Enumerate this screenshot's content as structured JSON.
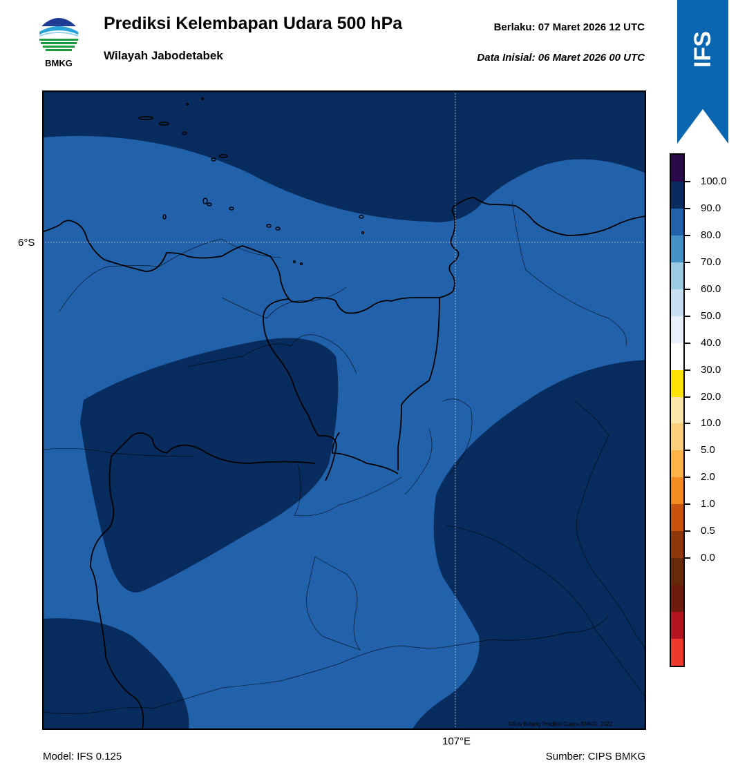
{
  "header": {
    "title": "Prediksi Kelembapan Udara 500 hPa",
    "region": "Wilayah Jabodetabek",
    "valid_time": "Berlaku:  07 Maret 2026 12 UTC",
    "initial_time": "Data Inisial:  06 Maret 2026 00 UTC"
  },
  "logo": {
    "text": "BMKG",
    "colors": [
      "#1f3a93",
      "#2aa3d9",
      "#1a9a3a"
    ]
  },
  "ribbon": {
    "label": "IFS",
    "color": "#0a66b0"
  },
  "map": {
    "lat_label": "6°S",
    "lon_label": "107°E",
    "credit": "©Sub Bidang Prediksi Cuaca BMKG, 2022",
    "fill_colors": {
      "humidity_80_90": "#2262ab",
      "humidity_90_100": "#082c5e"
    }
  },
  "colorbar": {
    "ticks": [
      "0.0",
      "0.5",
      "1.0",
      "2.0",
      "5.0",
      "10.0",
      "20.0",
      "30.0",
      "40.0",
      "50.0",
      "60.0",
      "70.0",
      "80.0",
      "90.0",
      "100.0"
    ],
    "colors": [
      "#ee3a2c",
      "#b3151e",
      "#6d1a0f",
      "#662a0b",
      "#8e360c",
      "#c9520e",
      "#f48b1e",
      "#fdb347",
      "#fcd07a",
      "#fbe6a8",
      "#fce200",
      "#ffffff",
      "#e8f1fb",
      "#c6e0f1",
      "#9ccae3",
      "#4390c4",
      "#2262ab",
      "#082c5e",
      "#2a0a4a"
    ]
  },
  "footer": {
    "model": "Model: IFS 0.125",
    "source": "Sumber: CIPS BMKG"
  }
}
